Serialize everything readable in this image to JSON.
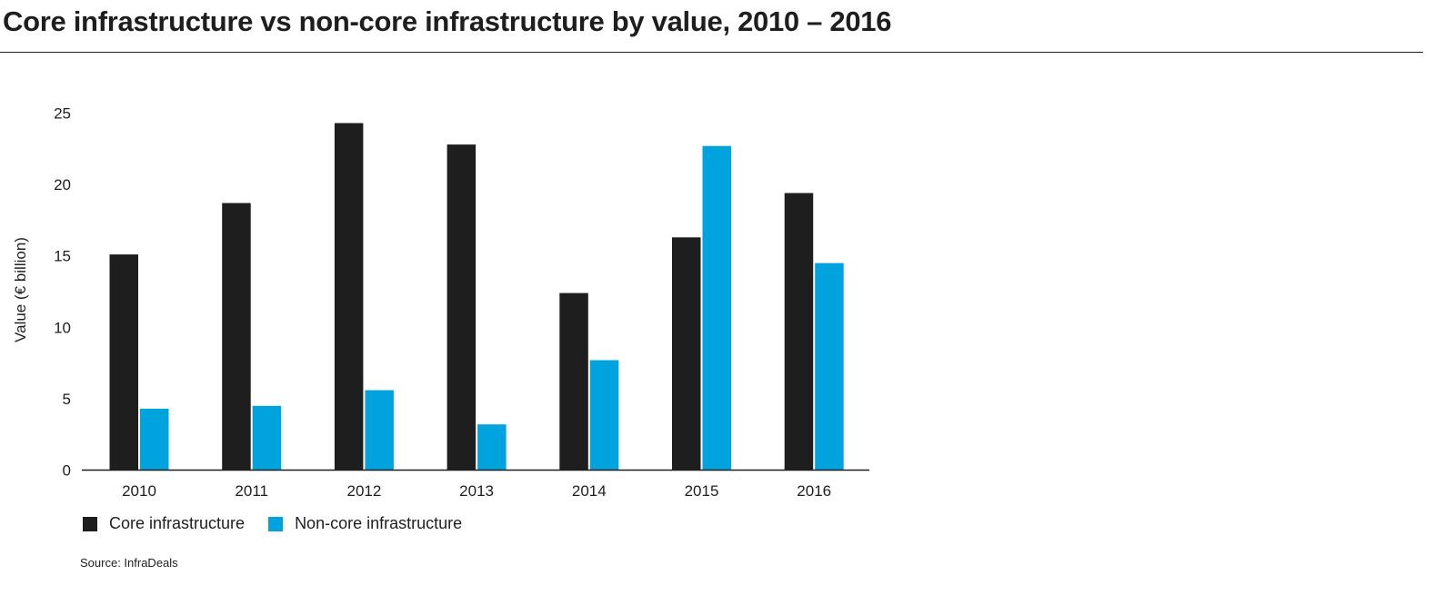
{
  "title": "Core infrastructure vs non-core infrastructure by value, 2010 – 2016",
  "source": "Source: InfraDeals",
  "colors": {
    "core": "#1e1e1e",
    "noncore": "#00a3de",
    "axis": "#1e1e1e"
  },
  "chart_data": {
    "type": "bar",
    "title": "Core infrastructure vs non-core infrastructure by value, 2010 – 2016",
    "xlabel": "",
    "ylabel": "Value (€ billion)",
    "ylim": [
      0,
      25
    ],
    "yticks": [
      0,
      5,
      10,
      15,
      20,
      25
    ],
    "grid": false,
    "legend_position": "bottom-left",
    "categories": [
      "2010",
      "2011",
      "2012",
      "2013",
      "2014",
      "2015",
      "2016"
    ],
    "series": [
      {
        "name": "Core infrastructure",
        "color": "#1e1e1e",
        "values": [
          15.1,
          18.7,
          24.3,
          22.8,
          12.4,
          16.3,
          19.4
        ]
      },
      {
        "name": "Non-core infrastructure",
        "color": "#00a3de",
        "values": [
          4.3,
          4.5,
          5.6,
          3.2,
          7.7,
          22.7,
          14.5
        ]
      }
    ]
  }
}
